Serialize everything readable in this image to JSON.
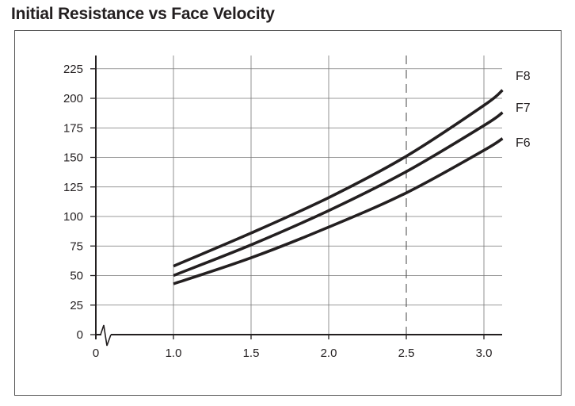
{
  "title": "Initial Resistance vs Face Velocity",
  "chart_data": {
    "type": "line",
    "title": "Initial Resistance vs Face Velocity",
    "xlabel": "",
    "ylabel": "",
    "xlim": [
      0.5,
      3.1
    ],
    "ylim": [
      0,
      235
    ],
    "axis_break": true,
    "x_origin_label": "0",
    "x_ticks": [
      "1.0",
      "1.5",
      "2.0",
      "2.5",
      "3.0"
    ],
    "y_ticks": [
      "0",
      "25",
      "50",
      "75",
      "100",
      "125",
      "150",
      "175",
      "200",
      "225"
    ],
    "reference_line": {
      "x": 2.5,
      "style": "dashed"
    },
    "grid": true,
    "series": [
      {
        "name": "F8",
        "x": [
          1.0,
          1.5,
          2.0,
          2.5,
          3.0,
          3.12
        ],
        "y": [
          58,
          86,
          116,
          151,
          194,
          207
        ]
      },
      {
        "name": "F7",
        "x": [
          1.0,
          1.5,
          2.0,
          2.5,
          3.0,
          3.12
        ],
        "y": [
          50,
          76,
          105,
          138,
          177,
          188
        ]
      },
      {
        "name": "F6",
        "x": [
          1.0,
          1.5,
          2.0,
          2.5,
          3.0,
          3.12
        ],
        "y": [
          43,
          65,
          91,
          120,
          156,
          166
        ]
      }
    ]
  }
}
